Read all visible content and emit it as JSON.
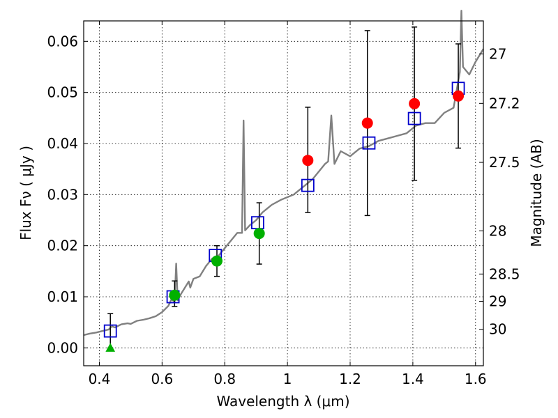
{
  "chart_data": {
    "type": "scatter",
    "title": "",
    "xlabel": "Wavelength  λ (μm)",
    "ylabel": "Flux  Fν  ( μJy )",
    "ylabel_right": "Magnitude (AB)",
    "xlim": [
      0.35,
      1.625
    ],
    "ylim": [
      -0.0035,
      0.064
    ],
    "grid": true,
    "x_ticks": [
      {
        "value": 0.4,
        "label": "0.4"
      },
      {
        "value": 0.6,
        "label": "0.6"
      },
      {
        "value": 0.8,
        "label": "0.8"
      },
      {
        "value": 1.0,
        "label": "1"
      },
      {
        "value": 1.2,
        "label": "1.2"
      },
      {
        "value": 1.4,
        "label": "1.4"
      },
      {
        "value": 1.6,
        "label": "1.6"
      }
    ],
    "y_ticks": [
      {
        "value": 0.0,
        "label": "0.00"
      },
      {
        "value": 0.01,
        "label": "0.01"
      },
      {
        "value": 0.02,
        "label": "0.02"
      },
      {
        "value": 0.03,
        "label": "0.03"
      },
      {
        "value": 0.04,
        "label": "0.04"
      },
      {
        "value": 0.05,
        "label": "0.05"
      },
      {
        "value": 0.06,
        "label": "0.06"
      }
    ],
    "right_ticks": [
      {
        "mag": 27,
        "label": "27"
      },
      {
        "mag": 27.2,
        "label": "27.2"
      },
      {
        "mag": 27.5,
        "label": "27.5"
      },
      {
        "mag": 28,
        "label": "28"
      },
      {
        "mag": 28.5,
        "label": "28.5"
      },
      {
        "mag": 29,
        "label": "29"
      },
      {
        "mag": 30,
        "label": "30"
      }
    ],
    "colors": {
      "spectrum": "#808080",
      "model": "#0000cc",
      "detection": "#00b000",
      "nir": "#ff0000",
      "errorbar": "#000000",
      "grid": "#000000"
    },
    "spectrum": [
      [
        0.35,
        0.0025
      ],
      [
        0.37,
        0.0028
      ],
      [
        0.39,
        0.003
      ],
      [
        0.41,
        0.0033
      ],
      [
        0.43,
        0.0036
      ],
      [
        0.44,
        0.0042
      ],
      [
        0.45,
        0.004
      ],
      [
        0.47,
        0.0046
      ],
      [
        0.49,
        0.0048
      ],
      [
        0.5,
        0.0047
      ],
      [
        0.52,
        0.0053
      ],
      [
        0.54,
        0.0055
      ],
      [
        0.56,
        0.0058
      ],
      [
        0.58,
        0.0062
      ],
      [
        0.6,
        0.007
      ],
      [
        0.62,
        0.0082
      ],
      [
        0.63,
        0.0095
      ],
      [
        0.64,
        0.009
      ],
      [
        0.645,
        0.0165
      ],
      [
        0.65,
        0.0093
      ],
      [
        0.66,
        0.0105
      ],
      [
        0.67,
        0.0115
      ],
      [
        0.68,
        0.0125
      ],
      [
        0.685,
        0.013
      ],
      [
        0.69,
        0.0118
      ],
      [
        0.7,
        0.0135
      ],
      [
        0.72,
        0.014
      ],
      [
        0.74,
        0.016
      ],
      [
        0.76,
        0.0175
      ],
      [
        0.78,
        0.018
      ],
      [
        0.8,
        0.0195
      ],
      [
        0.82,
        0.021
      ],
      [
        0.84,
        0.0225
      ],
      [
        0.855,
        0.0225
      ],
      [
        0.86,
        0.0445
      ],
      [
        0.865,
        0.023
      ],
      [
        0.88,
        0.024
      ],
      [
        0.9,
        0.025
      ],
      [
        0.92,
        0.0265
      ],
      [
        0.95,
        0.028
      ],
      [
        0.98,
        0.029
      ],
      [
        1.0,
        0.0295
      ],
      [
        1.02,
        0.03
      ],
      [
        1.05,
        0.0315
      ],
      [
        1.08,
        0.033
      ],
      [
        1.1,
        0.0345
      ],
      [
        1.12,
        0.036
      ],
      [
        1.13,
        0.0365
      ],
      [
        1.14,
        0.0455
      ],
      [
        1.15,
        0.036
      ],
      [
        1.17,
        0.0385
      ],
      [
        1.2,
        0.0375
      ],
      [
        1.23,
        0.039
      ],
      [
        1.26,
        0.0395
      ],
      [
        1.29,
        0.0405
      ],
      [
        1.32,
        0.041
      ],
      [
        1.35,
        0.0415
      ],
      [
        1.38,
        0.042
      ],
      [
        1.41,
        0.0435
      ],
      [
        1.44,
        0.044
      ],
      [
        1.47,
        0.044
      ],
      [
        1.5,
        0.046
      ],
      [
        1.53,
        0.047
      ],
      [
        1.55,
        0.054
      ],
      [
        1.555,
        0.066
      ],
      [
        1.56,
        0.055
      ],
      [
        1.58,
        0.0535
      ],
      [
        1.6,
        0.056
      ],
      [
        1.625,
        0.0585
      ]
    ],
    "model_points": [
      [
        0.435,
        0.0033
      ],
      [
        0.635,
        0.01
      ],
      [
        0.77,
        0.0181
      ],
      [
        0.905,
        0.0245
      ],
      [
        1.065,
        0.0318
      ],
      [
        1.26,
        0.0401
      ],
      [
        1.405,
        0.0449
      ],
      [
        1.545,
        0.0508
      ]
    ],
    "detections": [
      {
        "x": 0.64,
        "y": 0.0103,
        "err_low": 0.0022,
        "err_high": 0.0028
      },
      {
        "x": 0.775,
        "y": 0.017,
        "err_low": 0.003,
        "err_high": 0.003
      },
      {
        "x": 0.91,
        "y": 0.0224,
        "err_low": 0.006,
        "err_high": 0.006
      }
    ],
    "upper_limit": {
      "x": 0.435,
      "y": 0.0,
      "err_high": 0.0067
    },
    "nir_points": [
      {
        "x": 1.065,
        "y": 0.0367,
        "err_low": 0.0102,
        "err_high": 0.0104
      },
      {
        "x": 1.255,
        "y": 0.044,
        "err_low": 0.0181,
        "err_high": 0.0181
      },
      {
        "x": 1.405,
        "y": 0.0478,
        "err_low": 0.015,
        "err_high": 0.015
      },
      {
        "x": 1.545,
        "y": 0.0493,
        "err_low": 0.0102,
        "err_high": 0.0102
      }
    ]
  }
}
